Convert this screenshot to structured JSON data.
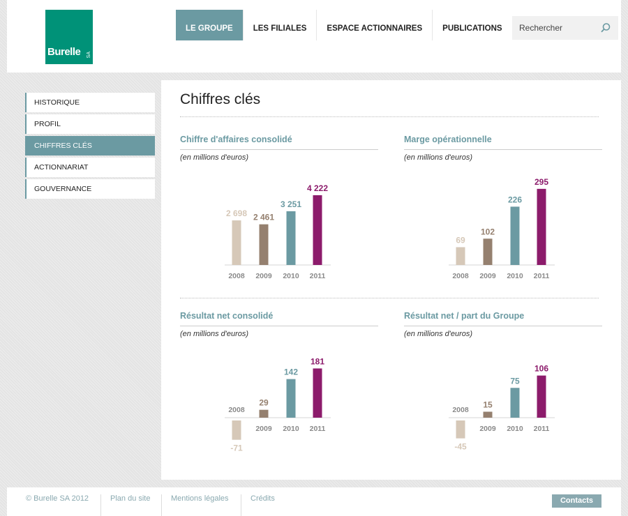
{
  "logo": {
    "name": "Burelle",
    "suffix": "SA"
  },
  "nav": {
    "items": [
      "LE GROUPE",
      "LES FILIALES",
      "ESPACE ACTIONNAIRES",
      "PUBLICATIONS"
    ],
    "active": "LE GROUPE"
  },
  "search": {
    "placeholder": "Rechercher",
    "icon": "search-icon"
  },
  "sidebar": {
    "items": [
      "HISTORIQUE",
      "PROFIL",
      "CHIFFRES CLÉS",
      "ACTIONNARIAT",
      "GOUVERNANCE"
    ],
    "active": "CHIFFRES CLÉS"
  },
  "main": {
    "title": "Chiffres clés"
  },
  "colors": {
    "accent": "#6b9aa2",
    "logo": "#009278",
    "bar_2008": "#d6c8b8",
    "bar_2009": "#95806f",
    "bar_2010": "#6b9aa2",
    "bar_2011": "#8c1b6b"
  },
  "chart_data": [
    {
      "type": "bar",
      "title": "Chiffre d'affaires consolidé",
      "unit": "(en millions d'euros)",
      "categories": [
        "2008",
        "2009",
        "2010",
        "2011"
      ],
      "values": [
        2698,
        2461,
        3251,
        4222
      ],
      "value_labels": [
        "2 698",
        "2 461",
        "3 251",
        "4 222"
      ]
    },
    {
      "type": "bar",
      "title": "Marge opérationnelle",
      "unit": "(en millions d'euros)",
      "categories": [
        "2008",
        "2009",
        "2010",
        "2011"
      ],
      "values": [
        69,
        102,
        226,
        295
      ],
      "value_labels": [
        "69",
        "102",
        "226",
        "295"
      ]
    },
    {
      "type": "bar",
      "title": "Résultat net consolidé",
      "unit": "(en millions d'euros)",
      "categories": [
        "2008",
        "2009",
        "2010",
        "2011"
      ],
      "values": [
        -71,
        29,
        142,
        181
      ],
      "value_labels": [
        "-71",
        "29",
        "142",
        "181"
      ]
    },
    {
      "type": "bar",
      "title": "Résultat net / part du Groupe",
      "unit": "(en millions d'euros)",
      "categories": [
        "2008",
        "2009",
        "2010",
        "2011"
      ],
      "values": [
        -45,
        15,
        75,
        106
      ],
      "value_labels": [
        "-45",
        "15",
        "75",
        "106"
      ]
    }
  ],
  "footer": {
    "copyright": "© Burelle SA 2012",
    "links": [
      "Plan du site",
      "Mentions légales",
      "Crédits"
    ],
    "contacts": "Contacts"
  }
}
